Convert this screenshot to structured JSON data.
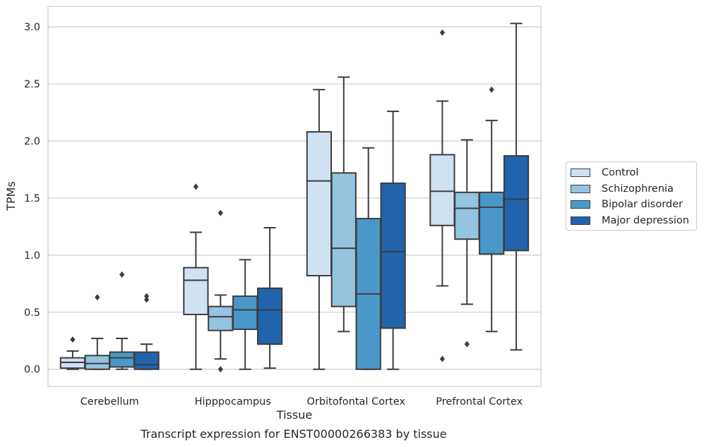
{
  "chart_data": {
    "type": "boxplot",
    "xlabel": "Tissue",
    "ylabel": "TPMs",
    "ylim": [
      -0.15,
      3.18
    ],
    "yticks": [
      0.0,
      0.5,
      1.0,
      1.5,
      2.0,
      2.5,
      3.0
    ],
    "ytick_labels": [
      "0.0",
      "0.5",
      "1.0",
      "1.5",
      "2.0",
      "2.5",
      "3.0"
    ],
    "grid": "horizontal",
    "legend_position": "right",
    "categories": [
      "Cerebellum",
      "Hipppocampus",
      "Orbitofontal Cortex",
      "Prefrontal Cortex"
    ],
    "series": [
      {
        "name": "Control",
        "color": "#d0e1f2",
        "boxes": [
          {
            "whislo": 0.0,
            "q1": 0.01,
            "med": 0.06,
            "q3": 0.1,
            "whishi": 0.16,
            "fliers": [
              0.26
            ]
          },
          {
            "whislo": 0.0,
            "q1": 0.48,
            "med": 0.78,
            "q3": 0.89,
            "whishi": 1.2,
            "fliers": [
              1.6
            ]
          },
          {
            "whislo": 0.0,
            "q1": 0.82,
            "med": 1.65,
            "q3": 2.08,
            "whishi": 2.45,
            "fliers": []
          },
          {
            "whislo": 0.73,
            "q1": 1.26,
            "med": 1.56,
            "q3": 1.88,
            "whishi": 2.35,
            "fliers": [
              2.95,
              0.09
            ]
          }
        ]
      },
      {
        "name": "Schizophrenia",
        "color": "#94c4df",
        "boxes": [
          {
            "whislo": 0.0,
            "q1": 0.0,
            "med": 0.05,
            "q3": 0.12,
            "whishi": 0.27,
            "fliers": [
              0.63
            ]
          },
          {
            "whislo": 0.09,
            "q1": 0.34,
            "med": 0.46,
            "q3": 0.55,
            "whishi": 0.65,
            "fliers": [
              1.37,
              0.0
            ]
          },
          {
            "whislo": 0.33,
            "q1": 0.55,
            "med": 1.06,
            "q3": 1.72,
            "whishi": 2.56,
            "fliers": []
          },
          {
            "whislo": 0.57,
            "q1": 1.14,
            "med": 1.41,
            "q3": 1.55,
            "whishi": 2.01,
            "fliers": [
              0.22
            ]
          }
        ]
      },
      {
        "name": "Bipolar disorder",
        "color": "#4a98c9",
        "boxes": [
          {
            "whislo": 0.0,
            "q1": 0.02,
            "med": 0.1,
            "q3": 0.15,
            "whishi": 0.27,
            "fliers": [
              0.83
            ]
          },
          {
            "whislo": 0.0,
            "q1": 0.35,
            "med": 0.52,
            "q3": 0.64,
            "whishi": 0.96,
            "fliers": []
          },
          {
            "whislo": 0.0,
            "q1": 0.0,
            "med": 0.66,
            "q3": 1.32,
            "whishi": 1.94,
            "fliers": []
          },
          {
            "whislo": 0.33,
            "q1": 1.01,
            "med": 1.42,
            "q3": 1.55,
            "whishi": 2.18,
            "fliers": [
              2.45
            ]
          }
        ]
      },
      {
        "name": "Major depression",
        "color": "#2164ab",
        "boxes": [
          {
            "whislo": 0.0,
            "q1": 0.0,
            "med": 0.04,
            "q3": 0.15,
            "whishi": 0.22,
            "fliers": [
              0.64,
              0.61
            ]
          },
          {
            "whislo": 0.01,
            "q1": 0.22,
            "med": 0.52,
            "q3": 0.71,
            "whishi": 1.24,
            "fliers": []
          },
          {
            "whislo": 0.0,
            "q1": 0.36,
            "med": 1.03,
            "q3": 1.63,
            "whishi": 2.26,
            "fliers": []
          },
          {
            "whislo": 0.17,
            "q1": 1.04,
            "med": 1.49,
            "q3": 1.87,
            "whishi": 3.03,
            "fliers": []
          }
        ]
      }
    ]
  },
  "caption": "Transcript expression for ENST00000266383 by tissue",
  "colors": {
    "grid": "#cccccc",
    "spine": "#cccccc",
    "line": "#3d3d3d"
  }
}
